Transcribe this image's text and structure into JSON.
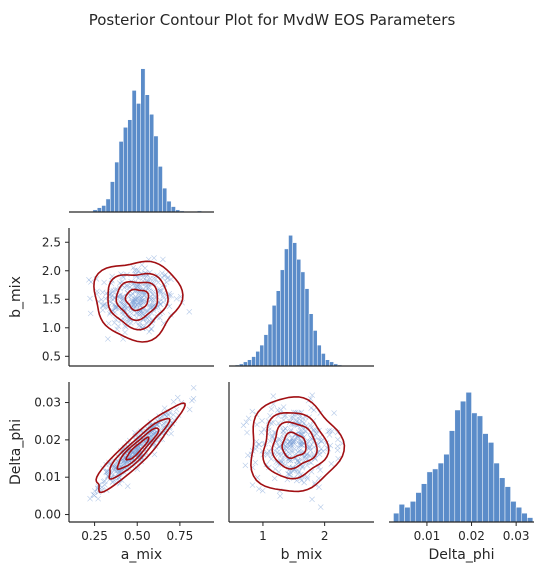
{
  "title": "Posterior Contour Plot for MvdW EOS Parameters",
  "colors": {
    "hist": "#5b8cc9",
    "scatter": "#7a9fd6",
    "contour": "#a10f13",
    "axis": "#262626"
  },
  "chart_data": {
    "type": "pairplot",
    "variables": [
      "a_mix",
      "b_mix",
      "Delta_phi"
    ],
    "axes": {
      "a_mix": {
        "label": "a_mix",
        "ticks": [
          0.25,
          0.5,
          0.75
        ],
        "tick_labels": [
          "0.25",
          "0.50",
          "0.75"
        ],
        "range": [
          0.1,
          0.95
        ]
      },
      "b_mix": {
        "label": "b_mix",
        "ticks": [
          1,
          2
        ],
        "tick_labels": [
          "1",
          "2"
        ],
        "range": [
          0.45,
          2.8
        ],
        "y_ticks": [
          0.5,
          1.0,
          1.5,
          2.0,
          2.5
        ],
        "y_tick_labels": [
          "0.5",
          "1.0",
          "1.5",
          "2.0",
          "2.5"
        ],
        "y_range": [
          0.33,
          2.75
        ]
      },
      "Delta_phi": {
        "label": "Delta_phi",
        "ticks": [
          0.01,
          0.02,
          0.03
        ],
        "tick_labels": [
          "0.01",
          "0.02",
          "0.03"
        ],
        "range": [
          0.0015,
          0.034
        ],
        "y_ticks": [
          0.0,
          0.01,
          0.02,
          0.03
        ],
        "y_tick_labels": [
          "0.00",
          "0.01",
          "0.02",
          "0.03"
        ],
        "y_range": [
          -0.002,
          0.0355
        ]
      }
    },
    "histograms": [
      {
        "variable": "a_mix",
        "bin_start": 0.24,
        "bin_width": 0.0255,
        "counts": [
          2,
          4,
          6,
          12,
          28,
          46,
          65,
          78,
          85,
          112,
          100,
          132,
          108,
          90,
          70,
          42,
          22,
          10,
          5,
          2,
          1,
          0,
          0,
          0,
          1
        ]
      },
      {
        "variable": "b_mix",
        "bin_start": 0.55,
        "bin_width": 0.0665,
        "counts": [
          1,
          2,
          4,
          6,
          9,
          14,
          20,
          30,
          40,
          58,
          72,
          92,
          112,
          125,
          118,
          102,
          90,
          74,
          50,
          34,
          20,
          12,
          6,
          4,
          2,
          1
        ]
      },
      {
        "variable": "Delta_phi",
        "bin_start": 0.0025,
        "bin_width": 0.00125,
        "counts": [
          6,
          12,
          10,
          14,
          20,
          26,
          34,
          36,
          40,
          46,
          62,
          76,
          82,
          88,
          74,
          72,
          60,
          54,
          40,
          30,
          24,
          14,
          10,
          6,
          3
        ]
      }
    ],
    "scatter_panels": [
      {
        "x": "a_mix",
        "y": "b_mix",
        "correlation": 0.0,
        "mean": [
          0.5,
          1.5
        ],
        "sd": [
          0.11,
          0.3
        ]
      },
      {
        "x": "a_mix",
        "y": "Delta_phi",
        "correlation": 0.92,
        "mean": [
          0.5,
          0.0175
        ],
        "sd": [
          0.11,
          0.005
        ]
      },
      {
        "x": "b_mix",
        "y": "Delta_phi",
        "correlation": 0.0,
        "mean": [
          1.5,
          0.0185
        ],
        "sd": [
          0.32,
          0.0055
        ]
      }
    ],
    "contour_levels": 4
  }
}
